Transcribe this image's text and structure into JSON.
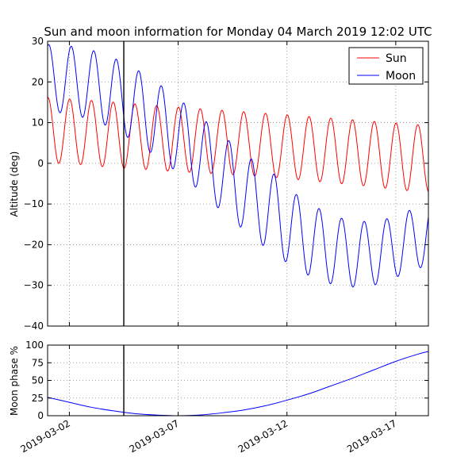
{
  "chart_data": [
    {
      "type": "line",
      "title": "Sun and moon information for Monday 04 March 2019 12:02 UTC",
      "xlabel": "",
      "ylabel": "Altitude (deg)",
      "xlim": [
        "2019-03-01T00:00",
        "2019-03-18T12:00"
      ],
      "ylim": [
        -40,
        30
      ],
      "yticks": [
        -40,
        -30,
        -20,
        -10,
        0,
        10,
        20,
        30
      ],
      "xticks": [
        "2019-03-02",
        "2019-03-07",
        "2019-03-12",
        "2019-03-17"
      ],
      "grid": true,
      "legend": "top-right",
      "current_time_marker": "2019-03-04T12:02",
      "series": [
        {
          "name": "Sun",
          "color": "#ff0000",
          "daily_peaks": [
            [
              "2019-03-01",
              16.0
            ],
            [
              "2019-03-02",
              15.6
            ],
            [
              "2019-03-03",
              15.3
            ],
            [
              "2019-03-04",
              14.8
            ],
            [
              "2019-03-05",
              14.4
            ],
            [
              "2019-03-06",
              14.0
            ],
            [
              "2019-03-07",
              13.6
            ],
            [
              "2019-03-08",
              13.2
            ],
            [
              "2019-03-09",
              12.9
            ],
            [
              "2019-03-10",
              12.5
            ],
            [
              "2019-03-11",
              12.1
            ],
            [
              "2019-03-12",
              11.7
            ],
            [
              "2019-03-13",
              11.3
            ],
            [
              "2019-03-14",
              10.9
            ],
            [
              "2019-03-15",
              10.5
            ],
            [
              "2019-03-16",
              10.1
            ],
            [
              "2019-03-17",
              9.7
            ],
            [
              "2019-03-18",
              9.3
            ]
          ],
          "daily_troughs": [
            [
              "2019-03-01",
              0.0
            ],
            [
              "2019-03-02",
              -0.3
            ],
            [
              "2019-03-03",
              -0.8
            ],
            [
              "2019-03-04",
              -1.2
            ],
            [
              "2019-03-05",
              -1.5
            ],
            [
              "2019-03-06",
              -1.9
            ],
            [
              "2019-03-07",
              -2.2
            ],
            [
              "2019-03-08",
              -2.5
            ],
            [
              "2019-03-09",
              -2.8
            ],
            [
              "2019-03-10",
              -3.1
            ],
            [
              "2019-03-11",
              -3.5
            ],
            [
              "2019-03-12",
              -4.0
            ],
            [
              "2019-03-13",
              -4.5
            ],
            [
              "2019-03-14",
              -5.0
            ],
            [
              "2019-03-15",
              -5.5
            ],
            [
              "2019-03-16",
              -6.1
            ],
            [
              "2019-03-17",
              -6.7
            ],
            [
              "2019-03-18",
              -7.0
            ]
          ]
        },
        {
          "name": "Moon",
          "color": "#0000ff",
          "daily_peaks": [
            [
              "2019-03-01",
              29.0
            ],
            [
              "2019-03-02",
              28.6
            ],
            [
              "2019-03-03",
              27.1
            ],
            [
              "2019-03-04",
              24.8
            ],
            [
              "2019-03-05",
              21.8
            ],
            [
              "2019-03-06",
              18.0
            ],
            [
              "2019-03-07",
              13.8
            ],
            [
              "2019-03-08",
              9.3
            ],
            [
              "2019-03-09",
              4.8
            ],
            [
              "2019-03-10",
              0.5
            ],
            [
              "2019-03-11",
              -3.0
            ],
            [
              "2019-03-12",
              -8.0
            ],
            [
              "2019-03-13",
              -11.2
            ],
            [
              "2019-03-14",
              -13.5
            ],
            [
              "2019-03-15",
              -14.3
            ],
            [
              "2019-03-16",
              -13.8
            ],
            [
              "2019-03-17",
              -11.8
            ],
            [
              "2019-03-18",
              -10.0
            ]
          ],
          "daily_troughs": [
            [
              "2019-03-01",
              12.5
            ],
            [
              "2019-03-02",
              11.5
            ],
            [
              "2019-03-03",
              9.8
            ],
            [
              "2019-03-04",
              7.0
            ],
            [
              "2019-03-05",
              3.5
            ],
            [
              "2019-03-06",
              -0.3
            ],
            [
              "2019-03-07",
              -4.4
            ],
            [
              "2019-03-08",
              -9.4
            ],
            [
              "2019-03-09",
              -14.0
            ],
            [
              "2019-03-10",
              -18.6
            ],
            [
              "2019-03-11",
              -22.6
            ],
            [
              "2019-03-12",
              -26.2
            ],
            [
              "2019-03-13",
              -28.9
            ],
            [
              "2019-03-14",
              -30.3
            ],
            [
              "2019-03-15",
              -30.5
            ],
            [
              "2019-03-16",
              -29.3
            ],
            [
              "2019-03-17",
              -26.8
            ],
            [
              "2019-03-18",
              -25.0
            ]
          ]
        }
      ]
    },
    {
      "type": "line",
      "title": "",
      "xlabel": "",
      "ylabel": "Moon phase %",
      "xlim": [
        "2019-03-01T00:00",
        "2019-03-18T12:00"
      ],
      "ylim": [
        0,
        100
      ],
      "yticks": [
        0,
        25,
        50,
        75,
        100
      ],
      "xticks": [
        "2019-03-02",
        "2019-03-07",
        "2019-03-12",
        "2019-03-17"
      ],
      "grid": true,
      "current_time_marker": "2019-03-04T12:02",
      "series": [
        {
          "color": "#0000ff",
          "points": [
            [
              "2019-03-01",
              26
            ],
            [
              "2019-03-02",
              19
            ],
            [
              "2019-03-03",
              12
            ],
            [
              "2019-03-04",
              7
            ],
            [
              "2019-03-05",
              3
            ],
            [
              "2019-03-06",
              1
            ],
            [
              "2019-03-07",
              0
            ],
            [
              "2019-03-08",
              1
            ],
            [
              "2019-03-09",
              4
            ],
            [
              "2019-03-10",
              8
            ],
            [
              "2019-03-11",
              14
            ],
            [
              "2019-03-12",
              22
            ],
            [
              "2019-03-13",
              31
            ],
            [
              "2019-03-14",
              42
            ],
            [
              "2019-03-15",
              53
            ],
            [
              "2019-03-16",
              65
            ],
            [
              "2019-03-17",
              77
            ],
            [
              "2019-03-18",
              87
            ],
            [
              "2019-03-18T12:00",
              91
            ]
          ]
        }
      ]
    }
  ]
}
